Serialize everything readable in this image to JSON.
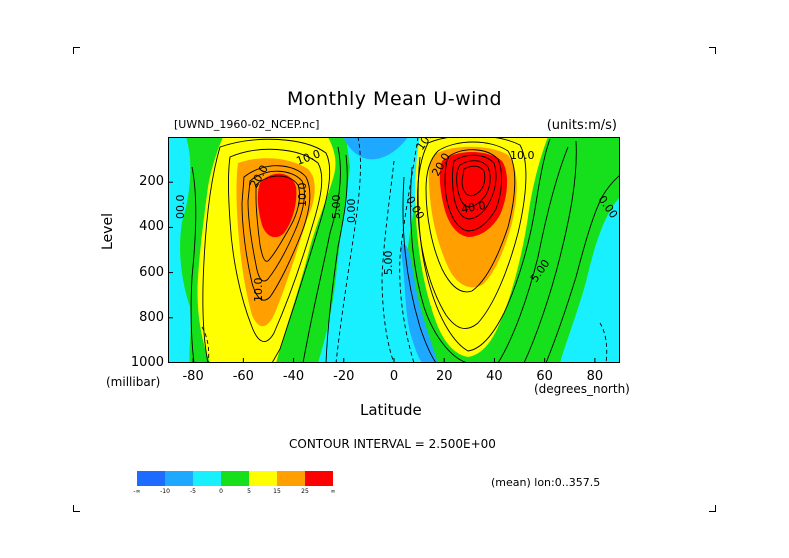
{
  "title": "Monthly Mean U-wind",
  "file_label": "[UWND_1960-02_NCEP.nc]",
  "units_label": "(units:m/s)",
  "footer": {
    "contour_interval": "CONTOUR INTERVAL = 2.500E+00",
    "mean_label": "(mean) lon:0..357.5"
  },
  "chart_data": {
    "type": "contour",
    "title": "Monthly Mean U-wind",
    "xlabel": "Latitude",
    "x_units": "(degrees_north)",
    "ylabel": "Level",
    "y_units": "(millibar)",
    "xlim": [
      -90,
      90
    ],
    "ylim": [
      1000,
      0
    ],
    "x_ticks": [
      "-80",
      "-60",
      "-40",
      "-20",
      "0",
      "20",
      "40",
      "60",
      "80"
    ],
    "y_ticks": [
      "200",
      "400",
      "600",
      "800",
      "1000"
    ],
    "contour_interval": 2.5,
    "contour_labels": [
      "00.0",
      "10.0",
      "20.0",
      "10.0",
      "5.00",
      "0.00",
      "10.0",
      "0.00",
      "5.00",
      "40.0",
      "20.0",
      "10.0",
      "5.00",
      "0.00",
      "10.0"
    ],
    "colorbar": {
      "levels": [
        "-∞",
        "-10",
        "-5",
        "0",
        "5",
        "15",
        "25",
        "∞"
      ],
      "colors": [
        "#1e6cff",
        "#1ea8ff",
        "#19f0ff",
        "#16e01c",
        "#ffff00",
        "#ffa000",
        "#ff0000"
      ]
    },
    "features": [
      {
        "name": "southern jet max",
        "lat": -48,
        "level": 280,
        "value_min": 25
      },
      {
        "name": "northern jet max",
        "lat": 32,
        "level": 200,
        "value_min": 40
      },
      {
        "name": "equatorial easterlies",
        "lat": 5,
        "level": 700,
        "value_max": -5
      }
    ]
  }
}
